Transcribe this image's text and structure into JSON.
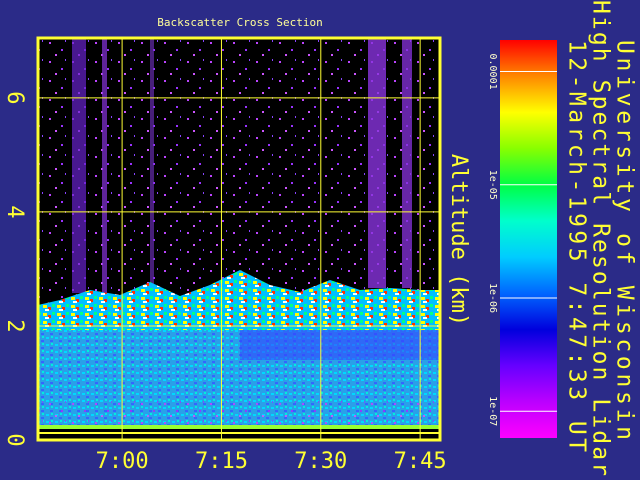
{
  "chart_data": {
    "type": "heatmap",
    "title": "Backscatter Cross Section",
    "y_label": "Altitude (km)",
    "ylim": [
      0,
      7.05
    ],
    "yticks": [
      0,
      2,
      4,
      6
    ],
    "xlim": [
      407.3,
      468
    ],
    "xticks": [
      {
        "value": 420,
        "label": "7:00"
      },
      {
        "value": 435,
        "label": "7:15"
      },
      {
        "value": 450,
        "label": "7:30"
      },
      {
        "value": 465,
        "label": "7:45"
      }
    ],
    "grid": true,
    "colorbar": {
      "log_scale": true,
      "clim": [
        5.8e-08,
        0.00019
      ],
      "ticks": [
        0.0001,
        {
          "value": 1e-05,
          "label": "1e-05"
        },
        {
          "value": 1e-06,
          "label": "1e-06"
        },
        {
          "value": 1e-07,
          "label": "1e-07"
        }
      ],
      "colorscale": [
        "#ff0000",
        "#ff8800",
        "#ffff00",
        "#88ff00",
        "#00ff44",
        "#00ffcc",
        "#00ccff",
        "#0066ff",
        "#0000dd",
        "#6600ff",
        "#bb00ff",
        "#ff00ff"
      ]
    },
    "header": {
      "line1": "University of Wisconsin",
      "line2": "High Spectral Resolution Lidar",
      "line3": "12-March-1995   7:47:33 UT"
    }
  }
}
